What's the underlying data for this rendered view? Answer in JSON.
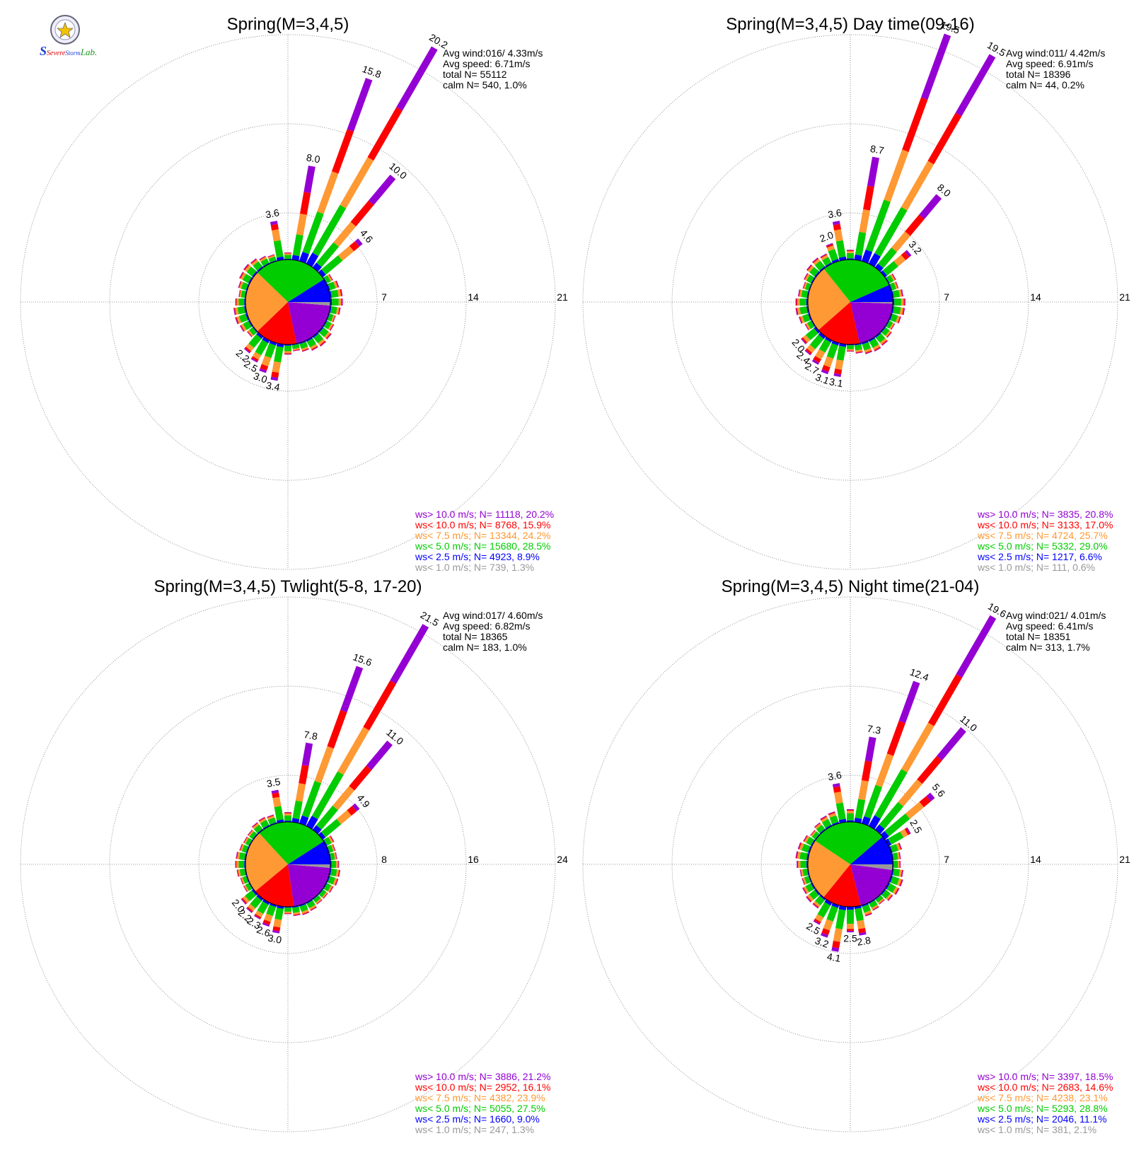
{
  "logo": {
    "text": "SSevere Storm Lab.",
    "parts": [
      "S",
      "Severe",
      "Storm",
      "Lab."
    ]
  },
  "colors": {
    "ws_gt10": "#9400D3",
    "ws_lt10": "#FF0000",
    "ws_lt7_5": "#FF9933",
    "ws_lt5": "#00CC00",
    "ws_lt2_5": "#0000FF",
    "ws_lt1": "#999999"
  },
  "chart_data": [
    {
      "type": "polar-bar",
      "title": "Spring(M=3,4,5)",
      "stats": [
        "Avg wind:016/ 4.33m/s",
        "Avg speed: 6.71m/s",
        "total N=     55112",
        "calm N=    540,   1.0%"
      ],
      "rings": [
        7,
        14,
        21
      ],
      "ring_labels": [
        "7",
        "14",
        "21"
      ],
      "pie": [
        8.9,
        28.5,
        24.2,
        15.9,
        20.2,
        1.3
      ],
      "peaks": [
        {
          "dir": 10,
          "value": 8.0,
          "label": "8.0"
        },
        {
          "dir": 20,
          "value": 15.8,
          "label": "15.8"
        },
        {
          "dir": 30,
          "value": 20.2,
          "label": "20.2"
        },
        {
          "dir": 40,
          "value": 10.0,
          "label": "10.0"
        },
        {
          "dir": 50,
          "value": 4.6,
          "label": "4.6"
        },
        {
          "dir": 350,
          "value": 3.6,
          "label": "3.6"
        },
        {
          "dir": 190,
          "value": 3.4,
          "label": "3.4"
        },
        {
          "dir": 200,
          "value": 3.0,
          "label": "3.0"
        },
        {
          "dir": 210,
          "value": 2.5,
          "label": "2.5"
        },
        {
          "dir": 220,
          "value": 2.2,
          "label": "2.2"
        }
      ],
      "legend": [
        "ws> 10.0 m/s; N= 11118, 20.2%",
        "ws< 10.0 m/s; N=  8768, 15.9%",
        "ws<  7.5 m/s; N= 13344, 24.2%",
        "ws<  5.0 m/s; N= 15680, 28.5%",
        "ws<  2.5 m/s; N=  4923,  8.9%",
        "ws<  1.0 m/s; N=   739,  1.3%"
      ]
    },
    {
      "type": "polar-bar",
      "title": "Spring(M=3,4,5) Day time(09-16)",
      "stats": [
        "Avg wind:011/ 4.42m/s",
        "Avg speed: 6.91m/s",
        "total N=     18396",
        "calm N=     44,   0.2%"
      ],
      "rings": [
        7,
        14,
        21
      ],
      "ring_labels": [
        "7",
        "14",
        "21"
      ],
      "pie": [
        6.6,
        29.0,
        25.7,
        17.0,
        20.8,
        0.6
      ],
      "peaks": [
        {
          "dir": 10,
          "value": 8.7,
          "label": "8.7"
        },
        {
          "dir": 20,
          "value": 19.5,
          "label": "19.5"
        },
        {
          "dir": 30,
          "value": 19.5,
          "label": "19.5"
        },
        {
          "dir": 40,
          "value": 8.0,
          "label": "8.0"
        },
        {
          "dir": 50,
          "value": 3.2,
          "label": "3.2"
        },
        {
          "dir": 350,
          "value": 3.6,
          "label": "3.6"
        },
        {
          "dir": 340,
          "value": 2.0,
          "label": "2.0"
        },
        {
          "dir": 190,
          "value": 3.1,
          "label": "3.1"
        },
        {
          "dir": 200,
          "value": 3.1,
          "label": "3.1"
        },
        {
          "dir": 210,
          "value": 2.7,
          "label": "2.7"
        },
        {
          "dir": 220,
          "value": 2.4,
          "label": "2.4"
        },
        {
          "dir": 230,
          "value": 2.0,
          "label": "2.0"
        }
      ],
      "legend": [
        "ws> 10.0 m/s; N=  3835, 20.8%",
        "ws< 10.0 m/s; N=  3133, 17.0%",
        "ws<  7.5 m/s; N=  4724, 25.7%",
        "ws<  5.0 m/s; N=  5332, 29.0%",
        "ws<  2.5 m/s; N=  1217,  6.6%",
        "ws<  1.0 m/s; N=   111,  0.6%"
      ]
    },
    {
      "type": "polar-bar",
      "title": "Spring(M=3,4,5) Twlight(5-8, 17-20)",
      "stats": [
        "Avg wind:017/ 4.60m/s",
        "Avg speed: 6.82m/s",
        "total N=     18365",
        "calm N=    183,   1.0%"
      ],
      "rings": [
        8,
        16,
        24
      ],
      "ring_labels": [
        "8",
        "16",
        "24"
      ],
      "pie": [
        9.0,
        27.5,
        23.9,
        16.1,
        21.2,
        1.3
      ],
      "peaks": [
        {
          "dir": 10,
          "value": 7.8,
          "label": "7.8"
        },
        {
          "dir": 20,
          "value": 15.6,
          "label": "15.6"
        },
        {
          "dir": 30,
          "value": 21.5,
          "label": "21.5"
        },
        {
          "dir": 40,
          "value": 11.0,
          "label": "11.0"
        },
        {
          "dir": 50,
          "value": 4.9,
          "label": "4.9"
        },
        {
          "dir": 350,
          "value": 3.5,
          "label": "3.5"
        },
        {
          "dir": 190,
          "value": 3.0,
          "label": "3.0"
        },
        {
          "dir": 200,
          "value": 2.6,
          "label": "2.6"
        },
        {
          "dir": 210,
          "value": 2.3,
          "label": "2.3"
        },
        {
          "dir": 220,
          "value": 2.2,
          "label": "2.2"
        },
        {
          "dir": 230,
          "value": 2.0,
          "label": "2.0"
        }
      ],
      "legend": [
        "ws> 10.0 m/s; N=  3886, 21.2%",
        "ws< 10.0 m/s; N=  2952, 16.1%",
        "ws<  7.5 m/s; N=  4382, 23.9%",
        "ws<  5.0 m/s; N=  5055, 27.5%",
        "ws<  2.5 m/s; N=  1660,  9.0%",
        "ws<  1.0 m/s; N=   247,  1.3%"
      ]
    },
    {
      "type": "polar-bar",
      "title": "Spring(M=3,4,5) Night time(21-04)",
      "stats": [
        "Avg wind:021/ 4.01m/s",
        "Avg speed: 6.41m/s",
        "total N=     18351",
        "calm N=    313,   1.7%"
      ],
      "rings": [
        7,
        14,
        21
      ],
      "ring_labels": [
        "7",
        "14",
        "21"
      ],
      "pie": [
        11.1,
        28.8,
        23.1,
        14.6,
        18.5,
        2.1
      ],
      "peaks": [
        {
          "dir": 10,
          "value": 7.3,
          "label": "7.3"
        },
        {
          "dir": 20,
          "value": 12.4,
          "label": "12.4"
        },
        {
          "dir": 30,
          "value": 19.6,
          "label": "19.6"
        },
        {
          "dir": 40,
          "value": 11.0,
          "label": "11.0"
        },
        {
          "dir": 50,
          "value": 5.6,
          "label": "5.6"
        },
        {
          "dir": 60,
          "value": 2.5,
          "label": "2.5"
        },
        {
          "dir": 350,
          "value": 3.6,
          "label": "3.6"
        },
        {
          "dir": 170,
          "value": 2.8,
          "label": "2.8"
        },
        {
          "dir": 180,
          "value": 2.5,
          "label": "2.5"
        },
        {
          "dir": 190,
          "value": 4.1,
          "label": "4.1"
        },
        {
          "dir": 200,
          "value": 3.2,
          "label": "3.2"
        },
        {
          "dir": 210,
          "value": 2.5,
          "label": "2.5"
        }
      ],
      "legend": [
        "ws> 10.0 m/s; N=  3397, 18.5%",
        "ws< 10.0 m/s; N=  2683, 14.6%",
        "ws<  7.5 m/s; N=  4238, 23.1%",
        "ws<  5.0 m/s; N=  5293, 28.8%",
        "ws<  2.5 m/s; N=  2046, 11.1%",
        "ws<  1.0 m/s; N=   381,  2.1%"
      ]
    }
  ]
}
